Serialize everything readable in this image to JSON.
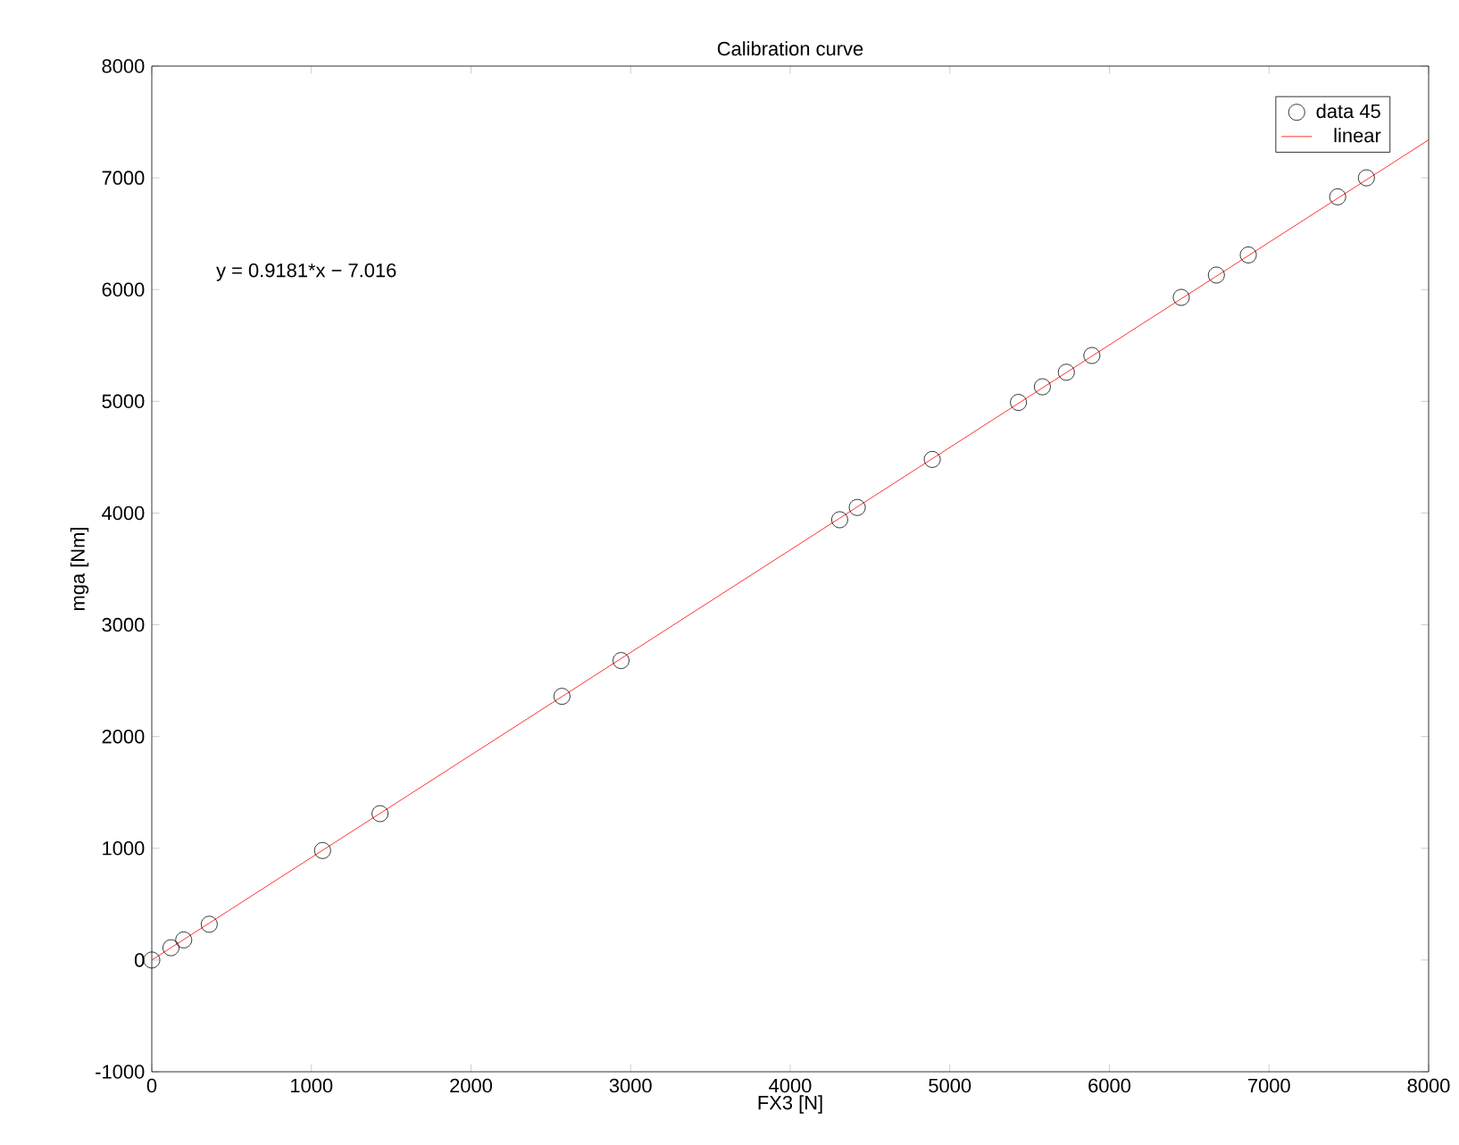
{
  "chart_data": {
    "type": "scatter",
    "title": "Calibration curve",
    "xlabel": "FX3 [N]",
    "ylabel": "mga [Nm]",
    "xlim": [
      0,
      8000
    ],
    "ylim": [
      -1000,
      8000
    ],
    "xticks": [
      0,
      1000,
      2000,
      3000,
      4000,
      5000,
      6000,
      7000,
      8000
    ],
    "yticks": [
      -1000,
      0,
      1000,
      2000,
      3000,
      4000,
      5000,
      6000,
      7000,
      8000
    ],
    "grid": false,
    "legend": "top right",
    "annotations": [
      "y = 0.9181*x − 7.016"
    ],
    "series": [
      {
        "name": "data 45",
        "marker": "circle",
        "color": "#000000",
        "x": [
          0,
          120,
          200,
          360,
          1070,
          1430,
          2570,
          2940,
          4310,
          4420,
          4890,
          5430,
          5580,
          5730,
          5890,
          6450,
          6670,
          6870,
          7430,
          7610
        ],
        "values": [
          0,
          110,
          180,
          320,
          980,
          1310,
          2360,
          2680,
          3940,
          4050,
          4480,
          4990,
          5130,
          5260,
          5410,
          5930,
          6130,
          6310,
          6830,
          7000
        ]
      },
      {
        "name": "linear",
        "type": "line",
        "marker": "none",
        "line_style": "solid",
        "color": "#ff0000",
        "x": [
          0,
          8000
        ],
        "values": [
          0,
          7340
        ]
      }
    ]
  }
}
